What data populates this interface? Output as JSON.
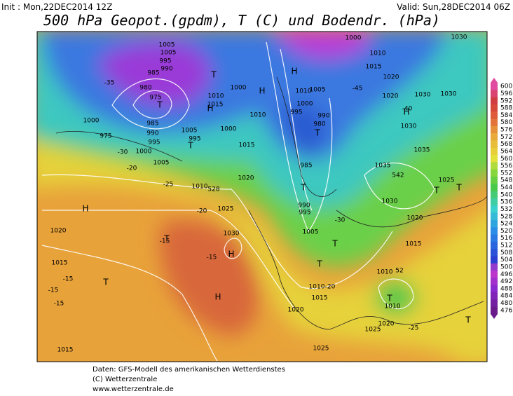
{
  "header": {
    "init": "Init : Mon,22DEC2014 12Z",
    "valid": "Valid: Sun,28DEC2014 06Z",
    "title": "500 hPa Geopot.(gpdm), T (C) und Bodendr. (hPa)"
  },
  "colorbar": {
    "ticks": [
      600,
      596,
      592,
      588,
      584,
      580,
      576,
      572,
      568,
      564,
      560,
      556,
      552,
      548,
      544,
      540,
      536,
      532,
      528,
      524,
      520,
      516,
      512,
      508,
      504,
      500,
      496,
      492,
      488,
      484,
      480,
      476
    ]
  },
  "map_labels": [
    "1005",
    "1005",
    "995",
    "990",
    "985",
    "980",
    "975",
    "T",
    "H",
    "T",
    "1010",
    "1015",
    "1000",
    "1005",
    "1000",
    "T",
    "995",
    "1000",
    "985",
    "990",
    "995",
    "1000",
    "975",
    "1005",
    "1010",
    "528",
    "1015",
    "1010",
    "1020",
    "H",
    "H",
    "1020",
    "1025",
    "1030",
    "H",
    "T",
    "T",
    "1015",
    "H",
    "1015",
    "1020",
    "1015",
    "1010",
    "1025",
    "1025",
    "T",
    "1010",
    "1020",
    "1015",
    "1010",
    "52",
    "1000",
    "1010",
    "1015",
    "1020",
    "H",
    "1010",
    "1005",
    "1000",
    "995",
    "990",
    "980",
    "T",
    "985",
    "T",
    "990",
    "995",
    "1005",
    "T",
    "T",
    "1030",
    "1020",
    "1035",
    "542",
    "1025",
    "T",
    "T",
    "H",
    "1030",
    "1030",
    "1030",
    "1035",
    "1020",
    "T",
    "1030",
    "-15",
    "-15",
    "-15",
    "-15",
    "-15",
    "-20",
    "-25",
    "-20",
    "-35",
    "-30",
    "-40",
    "-45",
    "-30",
    "-25",
    "-20"
  ],
  "footer": {
    "lines": [
      "Daten: GFS-Modell des amerikanischen Wetterdienstes",
      "(C) Wetterzentrale",
      "www.wetterzentrale.de"
    ]
  }
}
